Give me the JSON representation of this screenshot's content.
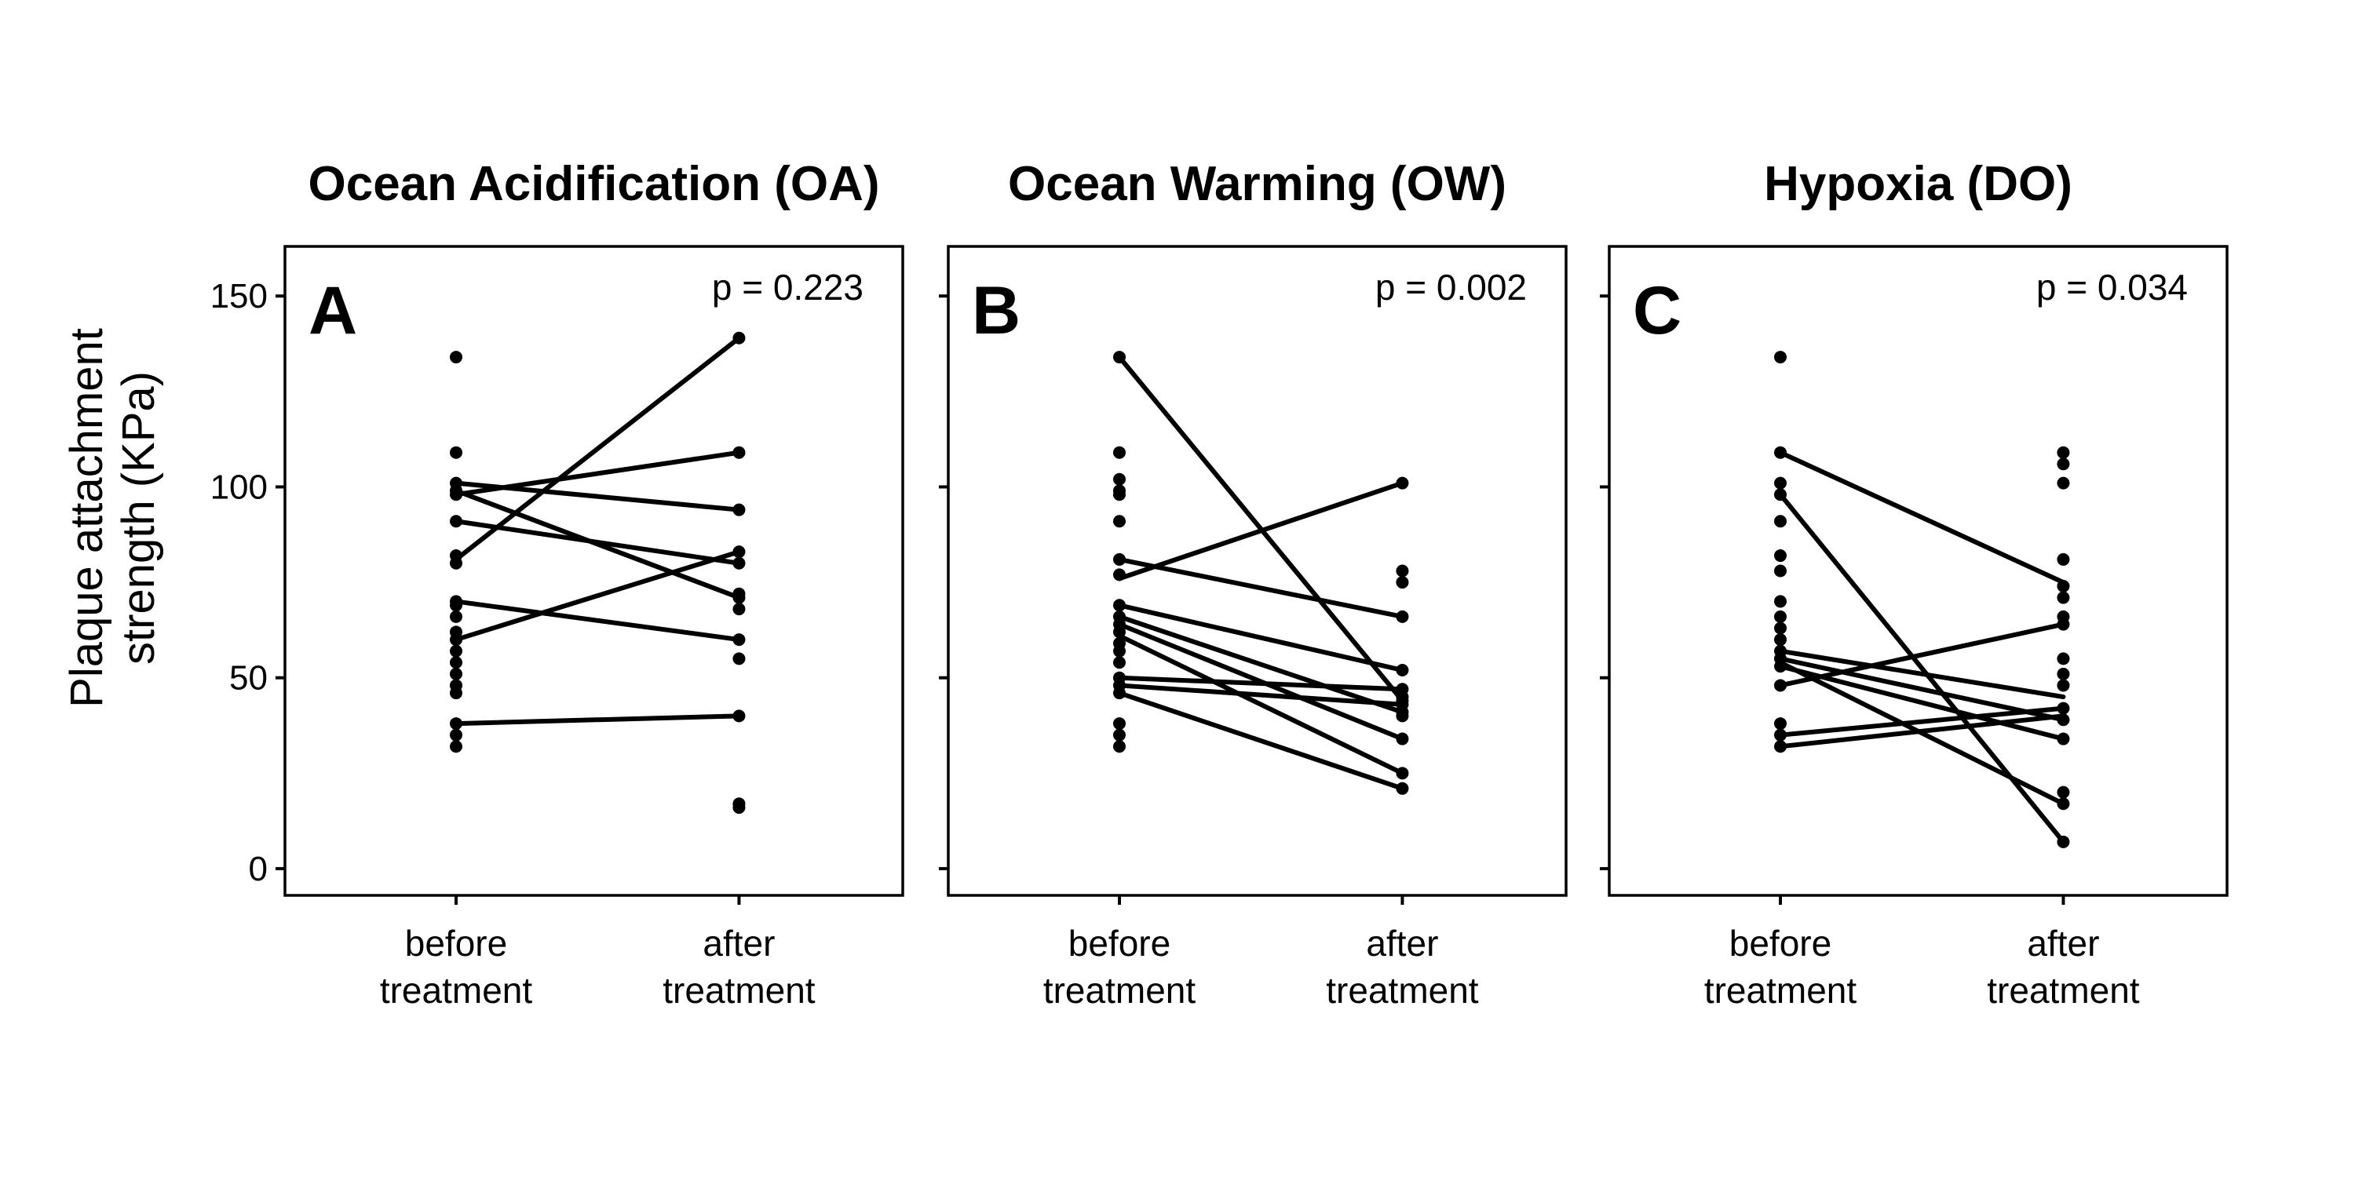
{
  "y_axis": {
    "label_lines": [
      "Plaque attachment",
      "strength (KPa)"
    ],
    "ticks": [
      0,
      50,
      100,
      150
    ],
    "ylim": [
      -7,
      163
    ]
  },
  "categories": [
    {
      "lines": [
        "before",
        "treatment"
      ]
    },
    {
      "lines": [
        "after",
        "treatment"
      ]
    }
  ],
  "chart_data": [
    {
      "type": "scatter",
      "title": "Ocean Acidification (OA)",
      "panel_letter": "A",
      "p_value_text": "p = 0.223",
      "categories": [
        "before treatment",
        "after treatment"
      ],
      "before_points": [
        134,
        109,
        101,
        99,
        98,
        91,
        82,
        80,
        70,
        69,
        66,
        62,
        60,
        57,
        54,
        51,
        48,
        46,
        38,
        35,
        32
      ],
      "after_points": [
        139,
        109,
        94,
        83,
        80,
        72,
        71,
        68,
        60,
        55,
        40,
        17,
        16
      ],
      "pairs": [
        [
          81,
          139
        ],
        [
          98,
          109
        ],
        [
          101,
          94
        ],
        [
          99,
          71
        ],
        [
          91,
          80
        ],
        [
          60,
          83
        ],
        [
          70,
          60
        ],
        [
          38,
          40
        ]
      ],
      "ylim": [
        -7,
        163
      ],
      "grid": false,
      "legend": "none"
    },
    {
      "type": "scatter",
      "title": "Ocean Warming (OW)",
      "panel_letter": "B",
      "p_value_text": "p = 0.002",
      "categories": [
        "before treatment",
        "after treatment"
      ],
      "before_points": [
        134,
        109,
        102,
        99,
        98,
        91,
        81,
        77,
        69,
        66,
        64,
        62,
        59,
        57,
        54,
        50,
        48,
        46,
        38,
        35,
        32
      ],
      "after_points": [
        101,
        78,
        75,
        66,
        52,
        47,
        45,
        44,
        43,
        41,
        40,
        34,
        25,
        21
      ],
      "pairs": [
        [
          134,
          44
        ],
        [
          76,
          101
        ],
        [
          81,
          66
        ],
        [
          69,
          52
        ],
        [
          66,
          41
        ],
        [
          64,
          34
        ],
        [
          61,
          25
        ],
        [
          50,
          47
        ],
        [
          48,
          43
        ],
        [
          46,
          21
        ]
      ],
      "ylim": [
        -7,
        163
      ],
      "grid": false,
      "legend": "none"
    },
    {
      "type": "scatter",
      "title": "Hypoxia (DO)",
      "panel_letter": "C",
      "p_value_text": "p = 0.034",
      "categories": [
        "before treatment",
        "after treatment"
      ],
      "before_points": [
        134,
        109,
        101,
        98,
        91,
        82,
        78,
        70,
        66,
        63,
        60,
        57,
        55,
        53,
        48,
        38,
        35,
        32
      ],
      "after_points": [
        109,
        106,
        101,
        81,
        74,
        71,
        66,
        64,
        55,
        51,
        48,
        42,
        39,
        34,
        20,
        17,
        7
      ],
      "pairs": [
        [
          109,
          75
        ],
        [
          98,
          7
        ],
        [
          57,
          45
        ],
        [
          55,
          39
        ],
        [
          53,
          34
        ],
        [
          54,
          17
        ],
        [
          48,
          64
        ],
        [
          35,
          42
        ],
        [
          32,
          40
        ]
      ],
      "ylim": [
        -7,
        163
      ],
      "grid": false,
      "legend": "none"
    }
  ]
}
